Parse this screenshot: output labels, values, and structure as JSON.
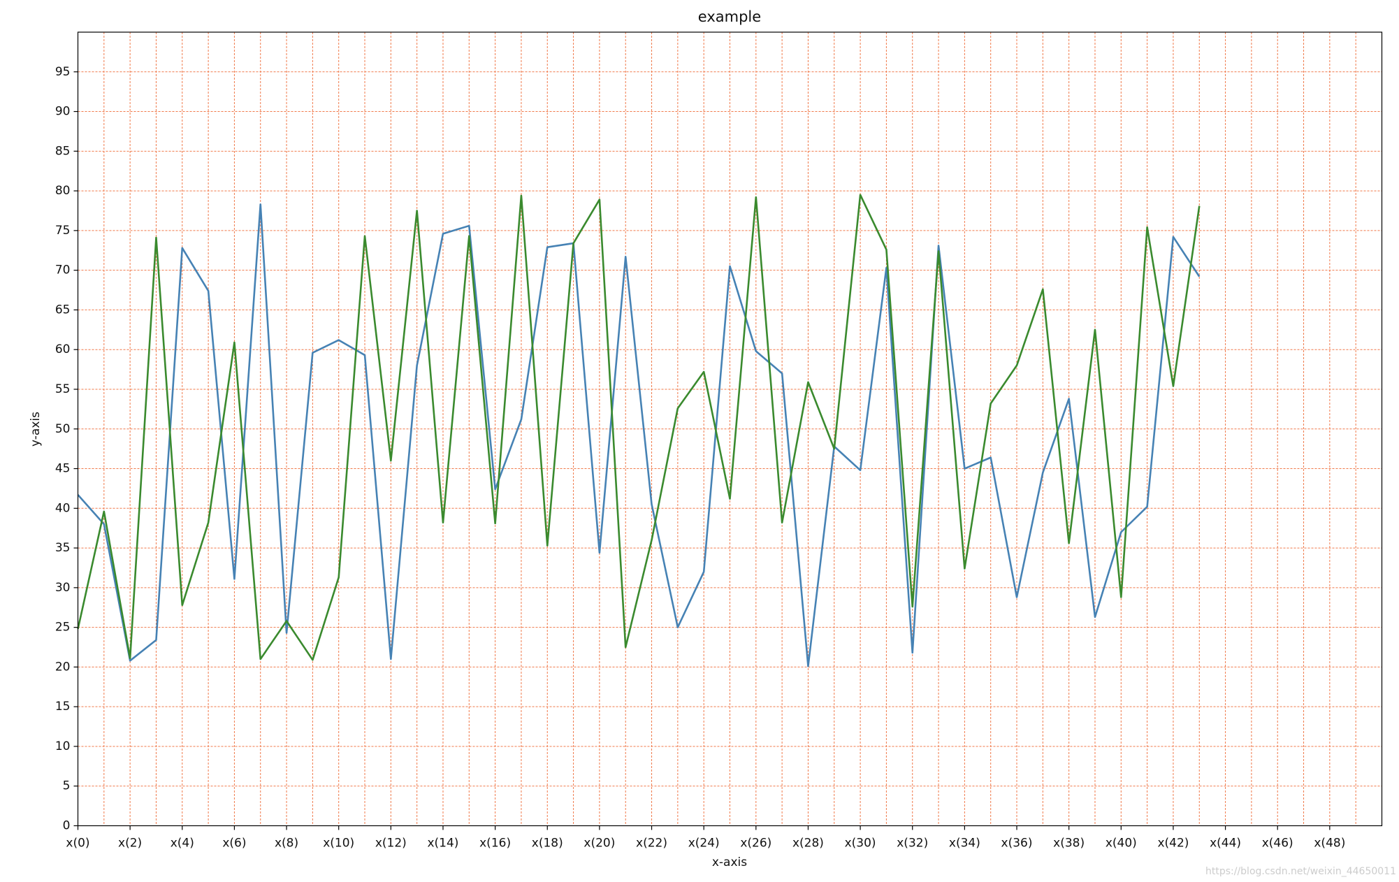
{
  "chart_data": {
    "type": "line",
    "title": "example",
    "xlabel": "x-axis",
    "ylabel": "y-axis",
    "watermark": "https://blog.csdn.net/weixin_44650011",
    "x": [
      0,
      1,
      2,
      3,
      4,
      5,
      6,
      7,
      8,
      9,
      10,
      11,
      12,
      13,
      14,
      15,
      16,
      17,
      18,
      19,
      20,
      21,
      22,
      23,
      24,
      25,
      26,
      27,
      28,
      29,
      30,
      31,
      32,
      33,
      34,
      35,
      36,
      37,
      38,
      39,
      40,
      41,
      42,
      43
    ],
    "series": [
      {
        "color": "#4682b4",
        "values": [
          41.7,
          38,
          20.8,
          23.4,
          72.8,
          67.4,
          31.1,
          78.3,
          24.3,
          59.6,
          61.2,
          59.3,
          21,
          58,
          74.6,
          75.6,
          42.4,
          51.2,
          72.9,
          73.4,
          34.4,
          71.7,
          40.5,
          25,
          32,
          70.5,
          59.8,
          57,
          20.1,
          47.8,
          44.8,
          70.3,
          21.8,
          73.1,
          45,
          46.4,
          28.8,
          44.5,
          53.8,
          26.3,
          37,
          40.2,
          74.2,
          69.2
        ]
      },
      {
        "color": "#3a8a2e",
        "values": [
          24.8,
          39.6,
          21.1,
          74.1,
          27.8,
          38.2,
          60.9,
          21,
          25.8,
          20.9,
          31.3,
          74.3,
          46,
          77.5,
          38.2,
          74.3,
          38.1,
          79.4,
          35.3,
          73.4,
          78.9,
          22.5,
          36,
          52.6,
          57.2,
          41.2,
          79.2,
          38.2,
          55.9,
          47.5,
          79.5,
          72.6,
          27.6,
          72.4,
          32.4,
          53.2,
          58,
          67.6,
          35.6,
          62.5,
          28.8,
          75.4,
          55.4,
          78.1
        ]
      }
    ],
    "xlim": [
      0,
      50
    ],
    "ylim": [
      0,
      100
    ],
    "xticks": [
      {
        "value": 0,
        "label": "x(0)"
      },
      {
        "value": 2,
        "label": "x(2)"
      },
      {
        "value": 4,
        "label": "x(4)"
      },
      {
        "value": 6,
        "label": "x(6)"
      },
      {
        "value": 8,
        "label": "x(8)"
      },
      {
        "value": 10,
        "label": "x(10)"
      },
      {
        "value": 12,
        "label": "x(12)"
      },
      {
        "value": 14,
        "label": "x(14)"
      },
      {
        "value": 16,
        "label": "x(16)"
      },
      {
        "value": 18,
        "label": "x(18)"
      },
      {
        "value": 20,
        "label": "x(20)"
      },
      {
        "value": 22,
        "label": "x(22)"
      },
      {
        "value": 24,
        "label": "x(24)"
      },
      {
        "value": 26,
        "label": "x(26)"
      },
      {
        "value": 28,
        "label": "x(28)"
      },
      {
        "value": 30,
        "label": "x(30)"
      },
      {
        "value": 32,
        "label": "x(32)"
      },
      {
        "value": 34,
        "label": "x(34)"
      },
      {
        "value": 36,
        "label": "x(36)"
      },
      {
        "value": 38,
        "label": "x(38)"
      },
      {
        "value": 40,
        "label": "x(40)"
      },
      {
        "value": 42,
        "label": "x(42)"
      },
      {
        "value": 44,
        "label": "x(44)"
      },
      {
        "value": 46,
        "label": "x(46)"
      },
      {
        "value": 48,
        "label": "x(48)"
      }
    ],
    "xminor_grid": [
      1,
      3,
      5,
      7,
      9,
      11,
      13,
      15,
      17,
      19,
      21,
      23,
      25,
      27,
      29,
      31,
      33,
      35,
      37,
      39,
      41,
      43,
      45,
      47,
      49
    ],
    "yticks": [
      0,
      5,
      10,
      15,
      20,
      25,
      30,
      35,
      40,
      45,
      50,
      55,
      60,
      65,
      70,
      75,
      80,
      85,
      90,
      95
    ],
    "grid": true,
    "grid_color": "#f0794a"
  }
}
